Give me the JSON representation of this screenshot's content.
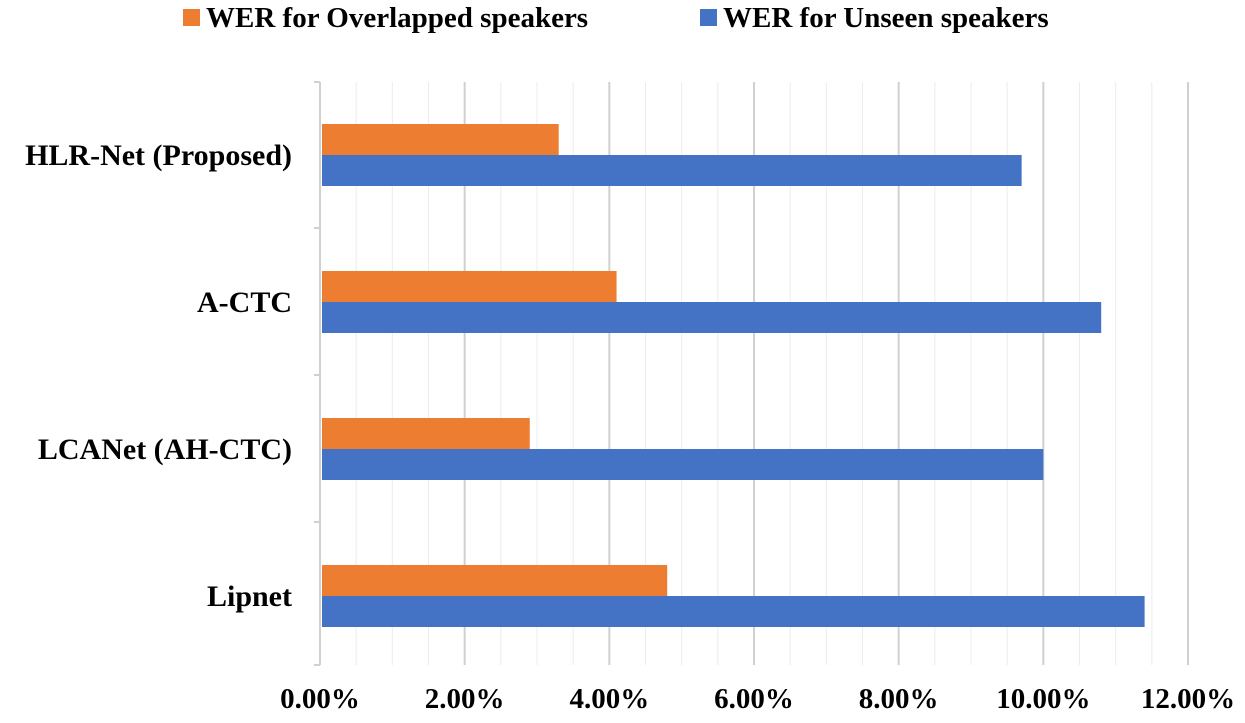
{
  "chart_data": {
    "type": "bar",
    "orientation": "horizontal",
    "title": "",
    "xlabel": "",
    "ylabel": "",
    "categories": [
      "HLR-Net (Proposed)",
      "A-CTC",
      "LCANet (AH-CTC)",
      "Lipnet"
    ],
    "series": [
      {
        "name": "WER for Overlapped speakers",
        "color": "#ED7D31",
        "values": [
          0.033,
          0.041,
          0.029,
          0.048
        ]
      },
      {
        "name": "WER for Unseen speakers",
        "color": "#4472C4",
        "values": [
          0.097,
          0.108,
          0.1,
          0.114
        ]
      }
    ],
    "xlim": [
      0,
      0.12
    ],
    "x_ticks": [
      0,
      0.02,
      0.04,
      0.06,
      0.08,
      0.1,
      0.12
    ],
    "x_tick_labels": [
      "0.00%",
      "2.00%",
      "4.00%",
      "6.00%",
      "8.00%",
      "10.00%",
      "12.00%"
    ],
    "grid": true,
    "legend_position": "top"
  }
}
